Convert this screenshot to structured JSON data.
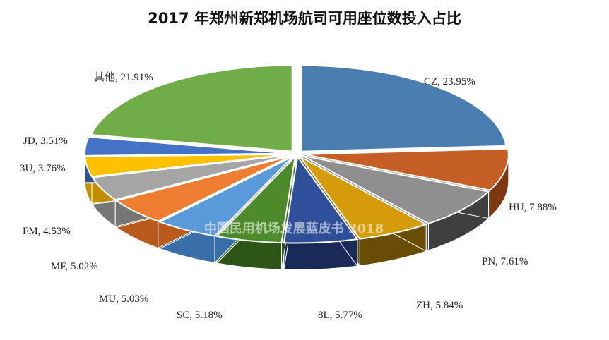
{
  "chart_data": {
    "type": "pie",
    "title": "2017 年郑州新郑机场航司可用座位数投入占比",
    "slices": [
      {
        "name": "CZ",
        "label": "CZ, 23.95%",
        "value": 23.95,
        "color": "#4a7eb0",
        "side": "#2e5680"
      },
      {
        "name": "HU",
        "label": "HU, 7.88%",
        "value": 7.88,
        "color": "#c65f26",
        "side": "#7e3711"
      },
      {
        "name": "PN",
        "label": "PN, 7.61%",
        "value": 7.61,
        "color": "#8f8f8f",
        "side": "#3f3f3f"
      },
      {
        "name": "ZH",
        "label": "ZH, 5.84%",
        "value": 5.84,
        "color": "#d49c0a",
        "side": "#6a4d04"
      },
      {
        "name": "8L",
        "label": "8L, 5.77%",
        "value": 5.77,
        "color": "#2f4f98",
        "side": "#172a58"
      },
      {
        "name": "SC",
        "label": "SC, 5.18%",
        "value": 5.18,
        "color": "#4d8a2c",
        "side": "#2d5517"
      },
      {
        "name": "MU",
        "label": "MU, 5.03%",
        "value": 5.03,
        "color": "#5b9ad8",
        "side": "#3a6ea6"
      },
      {
        "name": "MF",
        "label": "MF, 5.02%",
        "value": 5.02,
        "color": "#ed7d31",
        "side": "#b85a1c"
      },
      {
        "name": "FM",
        "label": "FM, 4.53%",
        "value": 4.53,
        "color": "#a5a5a5",
        "side": "#767676"
      },
      {
        "name": "3U",
        "label": "3U, 3.76%",
        "value": 3.76,
        "color": "#ffc000",
        "side": "#c08f00"
      },
      {
        "name": "JD",
        "label": "JD, 3.51%",
        "value": 3.51,
        "color": "#4472c4",
        "side": "#2f5290"
      },
      {
        "name": "其他",
        "label": "其他, 21.91%",
        "value": 21.91,
        "color": "#70ad47",
        "side": "#4c7c2e"
      }
    ]
  },
  "watermark": "中国民用机场发展蓝皮书 2018"
}
